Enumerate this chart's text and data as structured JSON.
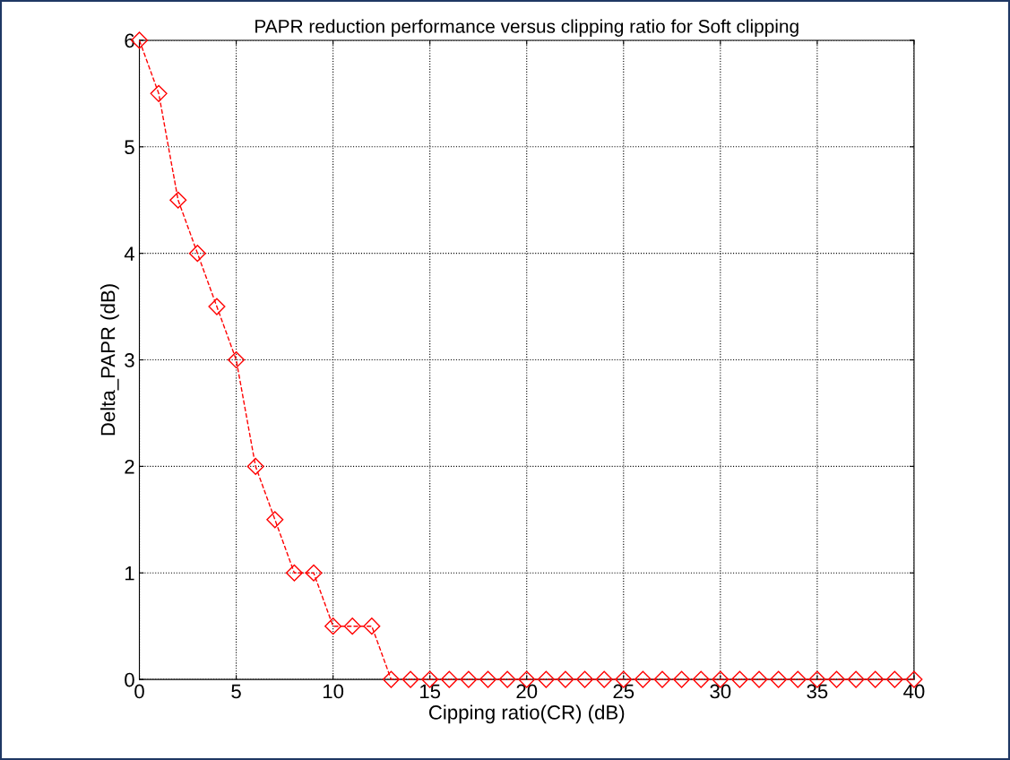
{
  "chart_data": {
    "type": "line",
    "title": "PAPR reduction performance versus clipping ratio for Soft clipping",
    "xlabel": "Cipping ratio(CR) (dB)",
    "ylabel": "Delta_PAPR (dB)",
    "x": [
      0,
      1,
      2,
      3,
      4,
      5,
      6,
      7,
      8,
      9,
      10,
      11,
      12,
      13,
      14,
      15,
      16,
      17,
      18,
      19,
      20,
      21,
      22,
      23,
      24,
      25,
      26,
      27,
      28,
      29,
      30,
      31,
      32,
      33,
      34,
      35,
      36,
      37,
      38,
      39,
      40
    ],
    "series": [
      {
        "color": "#ff0000",
        "values": [
          6,
          5.5,
          4.5,
          4,
          3.5,
          3,
          2,
          1.5,
          1,
          1,
          0.5,
          0.5,
          0.5,
          0,
          0,
          0,
          0,
          0,
          0,
          0,
          0,
          0,
          0,
          0,
          0,
          0,
          0,
          0,
          0,
          0,
          0,
          0,
          0,
          0,
          0,
          0,
          0,
          0,
          0,
          0,
          0
        ]
      }
    ],
    "xlim": [
      0,
      40
    ],
    "xticks": [
      0,
      5,
      10,
      15,
      20,
      25,
      30,
      35,
      40
    ],
    "ylim": [
      0,
      6
    ],
    "yticks": [
      0,
      1,
      2,
      3,
      4,
      5,
      6
    ],
    "grid": true,
    "marker": "diamond",
    "line_style": "dashed",
    "legend": false
  }
}
